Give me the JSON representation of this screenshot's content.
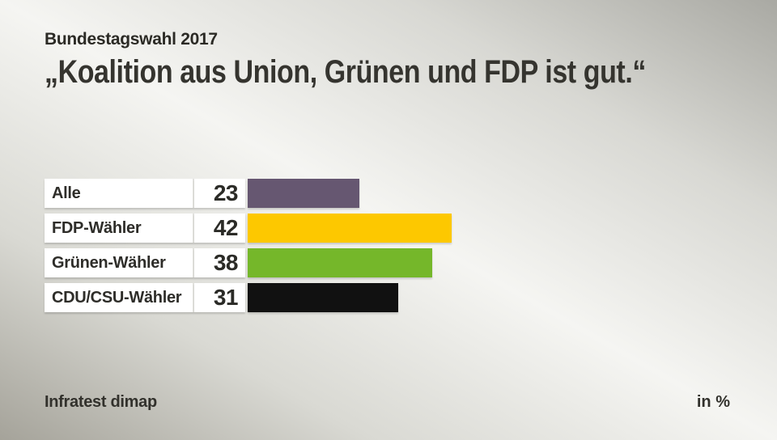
{
  "header": {
    "kicker": "Bundestagswahl 2017",
    "title": "„Koalition aus Union, Grünen und FDP ist gut.“"
  },
  "footer": {
    "source": "Infratest dimap",
    "unit": "in %"
  },
  "chart_data": {
    "type": "bar",
    "orientation": "horizontal",
    "title": "„Koalition aus Union, Grünen und FDP ist gut.“",
    "subtitle": "Bundestagswahl 2017",
    "unit": "%",
    "categories": [
      "Alle",
      "FDP-Wähler",
      "Grünen-Wähler",
      "CDU/CSU-Wähler"
    ],
    "values": [
      23,
      42,
      38,
      31
    ],
    "bar_colors": [
      "#665771",
      "#fdc800",
      "#75b72a",
      "#111111"
    ],
    "xlim": [
      0,
      50
    ],
    "grid": false,
    "legend": false,
    "value_labels_position": "left-of-bar",
    "source": "Infratest dimap"
  }
}
